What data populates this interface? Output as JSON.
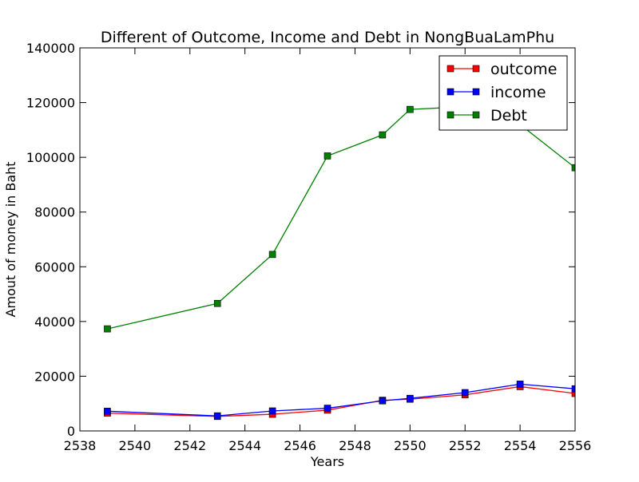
{
  "chart_data": {
    "type": "line",
    "title": "Different of Outcome, Income and Debt in NongBuaLamPhu",
    "xlabel": "Years",
    "ylabel": "Amout of money in Baht",
    "xlim": [
      2538,
      2556
    ],
    "ylim": [
      0,
      140000
    ],
    "xticks": [
      2538,
      2540,
      2542,
      2544,
      2546,
      2548,
      2550,
      2552,
      2554,
      2556
    ],
    "yticks": [
      0,
      20000,
      40000,
      60000,
      80000,
      100000,
      120000,
      140000
    ],
    "x": [
      2539,
      2543,
      2545,
      2547,
      2549,
      2550,
      2552,
      2554,
      2556
    ],
    "grid": false,
    "legend_position": "top-right",
    "series": [
      {
        "name": "outcome",
        "color": "#ff0000",
        "marker": "square",
        "values": [
          6500,
          5300,
          6100,
          7600,
          11200,
          11600,
          13200,
          16200,
          13700
        ]
      },
      {
        "name": "income",
        "color": "#0000ff",
        "marker": "square",
        "values": [
          7200,
          5500,
          7300,
          8300,
          11000,
          11900,
          14000,
          17100,
          15400
        ]
      },
      {
        "name": "Debt",
        "color": "#008000",
        "marker": "square",
        "values": [
          37300,
          46600,
          64500,
          100500,
          108200,
          117500,
          118500,
          112000,
          96200
        ]
      }
    ]
  }
}
